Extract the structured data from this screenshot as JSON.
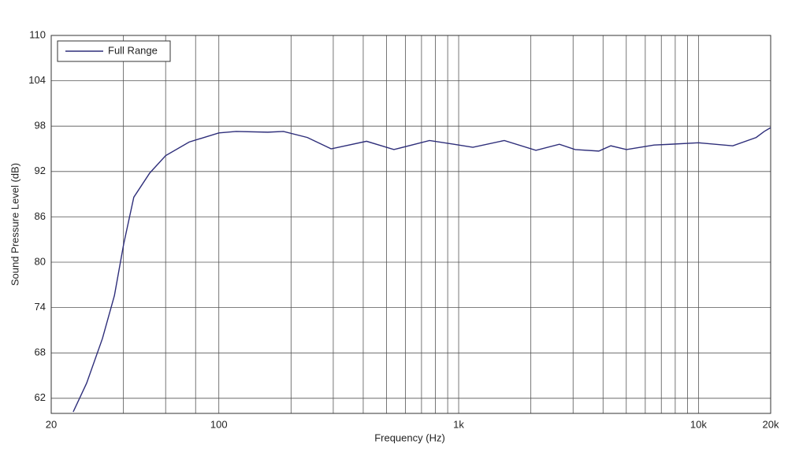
{
  "chart_data": {
    "type": "line",
    "x_label": "Frequency (Hz)",
    "y_label": "Sound Pressure Level (dB)",
    "x_log": true,
    "grid": true,
    "legend": "upper left",
    "xlim": [
      20,
      20000
    ],
    "ylim": [
      60,
      110
    ],
    "xticks": [
      20,
      100,
      {
        "value": 1000,
        "label": "1k"
      },
      {
        "value": 10000,
        "label": "10k"
      },
      {
        "value": 20000,
        "label": "20k"
      }
    ],
    "xminor": [
      40,
      60,
      80,
      200,
      300,
      400,
      500,
      600,
      700,
      800,
      900,
      2000,
      3000,
      4000,
      5000,
      6000,
      7000,
      8000,
      9000
    ],
    "yticks": [
      62,
      68,
      74,
      80,
      86,
      92,
      98,
      104,
      110
    ],
    "x": [
      24.7,
      28.1,
      32.7,
      36.7,
      40.1,
      44.2,
      51.5,
      60,
      75.2,
      100,
      118,
      160,
      186,
      234,
      294,
      413,
      537,
      756,
      955,
      1146,
      1550,
      2100,
      2630,
      3060,
      3840,
      4310,
      5010,
      6530,
      7590,
      10000,
      13900,
      17400,
      18800,
      20000
    ],
    "series": [
      {
        "name": "Full Range",
        "color": "#2e2e7a",
        "values": [
          60.2,
          64,
          69.9,
          75.6,
          82.4,
          88.6,
          91.8,
          94.1,
          95.9,
          97.1,
          97.3,
          97.2,
          97.3,
          96.5,
          95.0,
          96.0,
          94.9,
          96.1,
          95.6,
          95.2,
          96.1,
          94.8,
          95.6,
          94.9,
          94.7,
          95.4,
          94.9,
          95.5,
          95.6,
          95.8,
          95.4,
          96.5,
          97.3,
          97.8
        ]
      }
    ]
  }
}
